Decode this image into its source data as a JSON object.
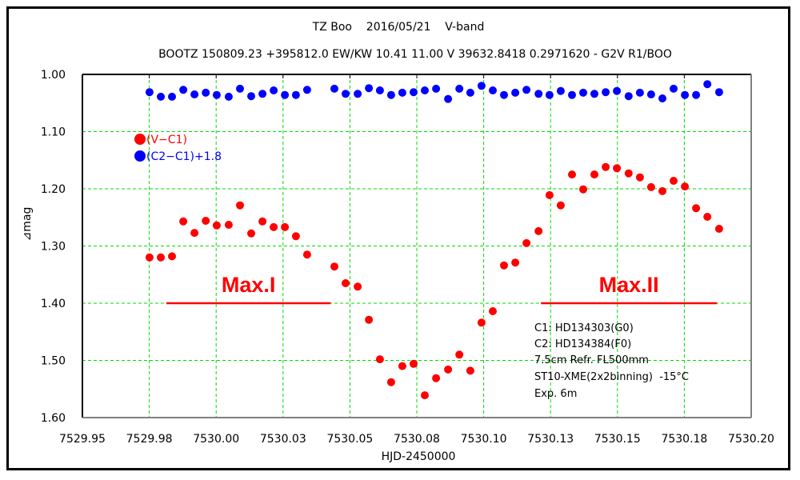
{
  "chart_data": {
    "type": "scatter",
    "title": "TZ Boo    2016/05/21    V-band",
    "subtitle": "BOOTZ 150809.23 +395812.0 EW/KW 10.41 11.00 V 39632.8418 0.2971620 - G2V R1/BOO",
    "xlabel": "HJD-2450000",
    "ylabel": "⊿mag",
    "xlim": [
      7529.95,
      7530.2
    ],
    "ylim": [
      1.0,
      1.6
    ],
    "y_inverted": true,
    "grid": true,
    "x_ticks": [
      7529.95,
      7529.975,
      7530.0,
      7530.025,
      7530.05,
      7530.075,
      7530.1,
      7530.125,
      7530.15,
      7530.175,
      7530.2
    ],
    "x_tick_labels": [
      "7529.95",
      "7529.98",
      "7530.00",
      "7530.03",
      "7530.05",
      "7530.08",
      "7530.10",
      "7530.13",
      "7530.15",
      "7530.18",
      "7530.20"
    ],
    "y_ticks": [
      1.0,
      1.1,
      1.2,
      1.3,
      1.4,
      1.5,
      1.6
    ],
    "y_tick_labels": [
      "1.00",
      "1.10",
      "1.20",
      "1.30",
      "1.40",
      "1.50",
      "1.60"
    ],
    "legend_position": "top-left",
    "series": [
      {
        "name": "(V−C1)",
        "color": "#ff0000",
        "x": [
          7529.9751,
          7529.9793,
          7529.9835,
          7529.9877,
          7529.9919,
          7529.9961,
          7530.0002,
          7530.0047,
          7530.0089,
          7530.0131,
          7530.0173,
          7530.0215,
          7530.0257,
          7530.0298,
          7530.034,
          7530.0442,
          7530.0484,
          7530.0529,
          7530.0571,
          7530.0612,
          7530.0654,
          7530.0696,
          7530.0738,
          7530.078,
          7530.0822,
          7530.0867,
          7530.0909,
          7530.095,
          7530.0992,
          7530.1034,
          7530.1076,
          7530.1118,
          7530.116,
          7530.1205,
          7530.1246,
          7530.1288,
          7530.133,
          7530.1372,
          7530.1414,
          7530.1456,
          7530.1498,
          7530.1542,
          7530.1584,
          7530.1626,
          7530.1668,
          7530.171,
          7530.1752,
          7530.1794,
          7530.1836,
          7530.188
        ],
        "y": [
          1.32,
          1.32,
          1.318,
          1.257,
          1.277,
          1.256,
          1.264,
          1.263,
          1.229,
          1.278,
          1.257,
          1.267,
          1.267,
          1.283,
          1.315,
          1.336,
          1.365,
          1.371,
          1.429,
          1.498,
          1.538,
          1.51,
          1.506,
          1.561,
          1.531,
          1.516,
          1.49,
          1.518,
          1.434,
          1.414,
          1.334,
          1.329,
          1.295,
          1.274,
          1.211,
          1.229,
          1.175,
          1.201,
          1.175,
          1.162,
          1.164,
          1.173,
          1.18,
          1.197,
          1.204,
          1.186,
          1.196,
          1.234,
          1.249,
          1.27
        ]
      },
      {
        "name": "(C2−C1)+1.8",
        "color": "#0000ff",
        "x": [
          7529.9751,
          7529.9793,
          7529.9835,
          7529.9877,
          7529.9919,
          7529.9961,
          7530.0002,
          7530.0047,
          7530.0089,
          7530.0131,
          7530.0173,
          7530.0215,
          7530.0257,
          7530.0298,
          7530.034,
          7530.0442,
          7530.0484,
          7530.0529,
          7530.0571,
          7530.0612,
          7530.0654,
          7530.0696,
          7530.0738,
          7530.078,
          7530.0822,
          7530.0867,
          7530.0909,
          7530.095,
          7530.0992,
          7530.1034,
          7530.1076,
          7530.1118,
          7530.116,
          7530.1205,
          7530.1246,
          7530.1288,
          7530.133,
          7530.1372,
          7530.1414,
          7530.1456,
          7530.1498,
          7530.1542,
          7530.1584,
          7530.1626,
          7530.1668,
          7530.171,
          7530.1752,
          7530.1794,
          7530.1836,
          7530.188
        ],
        "y": [
          1.031,
          1.039,
          1.039,
          1.027,
          1.035,
          1.032,
          1.036,
          1.039,
          1.025,
          1.038,
          1.034,
          1.028,
          1.036,
          1.036,
          1.027,
          1.025,
          1.034,
          1.034,
          1.024,
          1.028,
          1.036,
          1.032,
          1.031,
          1.028,
          1.025,
          1.043,
          1.025,
          1.032,
          1.02,
          1.028,
          1.036,
          1.032,
          1.027,
          1.034,
          1.036,
          1.029,
          1.036,
          1.032,
          1.034,
          1.031,
          1.029,
          1.038,
          1.032,
          1.035,
          1.042,
          1.025,
          1.036,
          1.036,
          1.017,
          1.031
        ]
      }
    ],
    "annotations": [
      {
        "text": "Max.I",
        "x_range": [
          7529.9814,
          7530.0428
        ],
        "y": 1.4,
        "color": "#ff0000"
      },
      {
        "text": "Max.II",
        "x_range": [
          7530.1214,
          7530.1872
        ],
        "y": 1.4,
        "color": "#ff0000"
      }
    ],
    "notes": [
      "C1: HD134303(G0)",
      "C2: HD134384(F0)",
      "7.5cm Refr. FL500mm",
      "ST10-XME(2x2binning)  -15°C",
      "Exp. 6m"
    ],
    "colors": {
      "grid": "#00dd00",
      "frame": "#000000",
      "axis_gray": "#808080"
    }
  }
}
